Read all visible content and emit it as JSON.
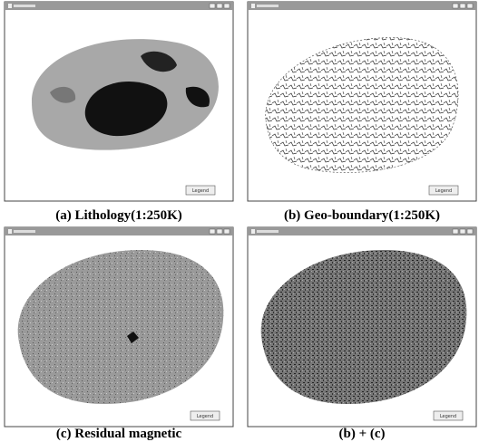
{
  "panels": [
    {
      "caption": "(a) Lithology(1:250K)",
      "legend": "Legend"
    },
    {
      "caption": "(b) Geo-boundary(1:250K)",
      "legend": "Legend"
    },
    {
      "caption": "(c) Residual magnetic",
      "legend": "Legend"
    },
    {
      "caption": "(b) + (c)",
      "legend": "Legend"
    }
  ]
}
